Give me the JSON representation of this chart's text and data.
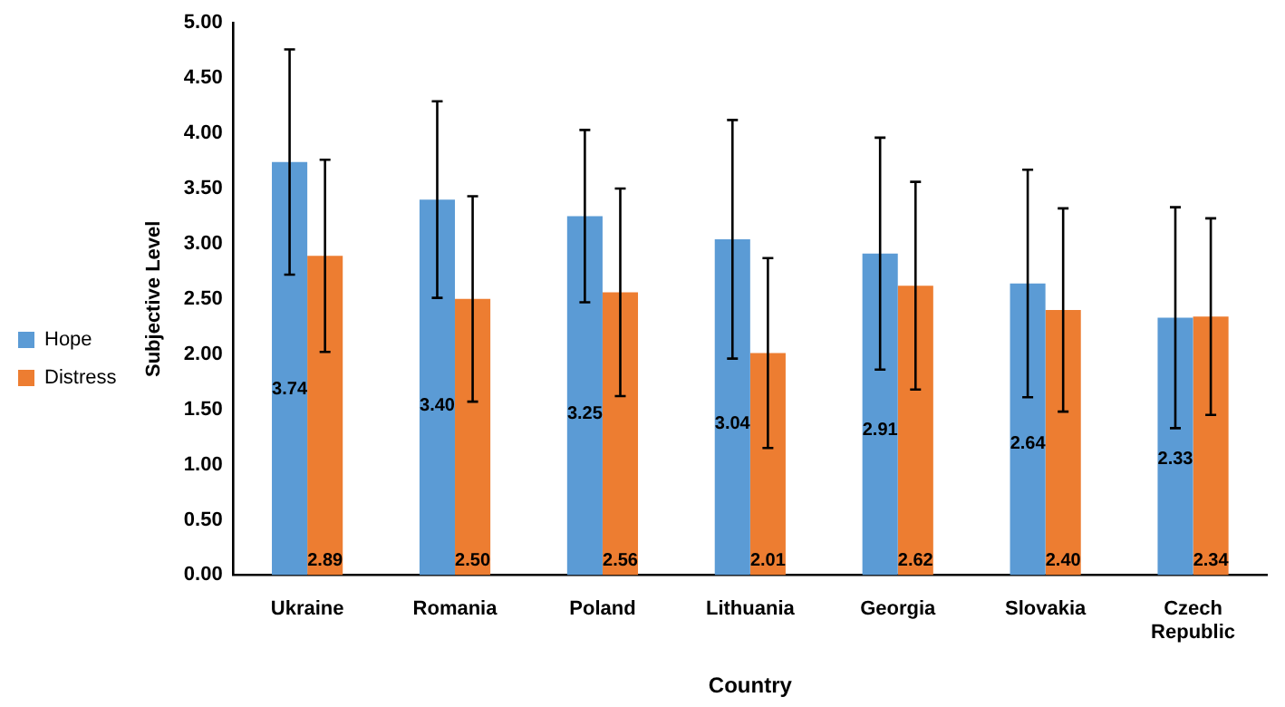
{
  "chart_data": {
    "type": "bar",
    "xlabel": "Country",
    "ylabel": "Subjective Level",
    "categories": [
      "Ukraine",
      "Romania",
      "Poland",
      "Lithuania",
      "Georgia",
      "Slovakia",
      "Czech Republic"
    ],
    "series": [
      {
        "name": "Hope",
        "color": "#5b9bd5",
        "values": [
          3.74,
          3.4,
          3.25,
          3.04,
          2.91,
          2.64,
          2.33
        ],
        "value_labels": [
          "3.74",
          "3.40",
          "3.25",
          "3.04",
          "2.91",
          "2.64",
          "2.33"
        ],
        "errors": [
          1.02,
          0.89,
          0.78,
          1.08,
          1.05,
          1.03,
          1.0
        ]
      },
      {
        "name": "Distress",
        "color": "#ed7d31",
        "values": [
          2.89,
          2.5,
          2.56,
          2.01,
          2.62,
          2.4,
          2.34
        ],
        "value_labels": [
          "2.89",
          "2.50",
          "2.56",
          "2.01",
          "2.62",
          "2.40",
          "2.34"
        ],
        "errors": [
          0.87,
          0.93,
          0.94,
          0.86,
          0.94,
          0.92,
          0.89
        ]
      }
    ],
    "ylim": [
      0,
      5
    ],
    "yticks": [
      {
        "value": 0,
        "label": "0.00"
      },
      {
        "value": 0.5,
        "label": "0.50"
      },
      {
        "value": 1,
        "label": "1.00"
      },
      {
        "value": 1.5,
        "label": "1.50"
      },
      {
        "value": 2,
        "label": "2.00"
      },
      {
        "value": 2.5,
        "label": "2.50"
      },
      {
        "value": 3,
        "label": "3.00"
      },
      {
        "value": 3.5,
        "label": "3.50"
      },
      {
        "value": 4,
        "label": "4.00"
      },
      {
        "value": 4.5,
        "label": "4.50"
      },
      {
        "value": 5,
        "label": "5.00"
      }
    ],
    "grid": false,
    "legend": "left"
  }
}
